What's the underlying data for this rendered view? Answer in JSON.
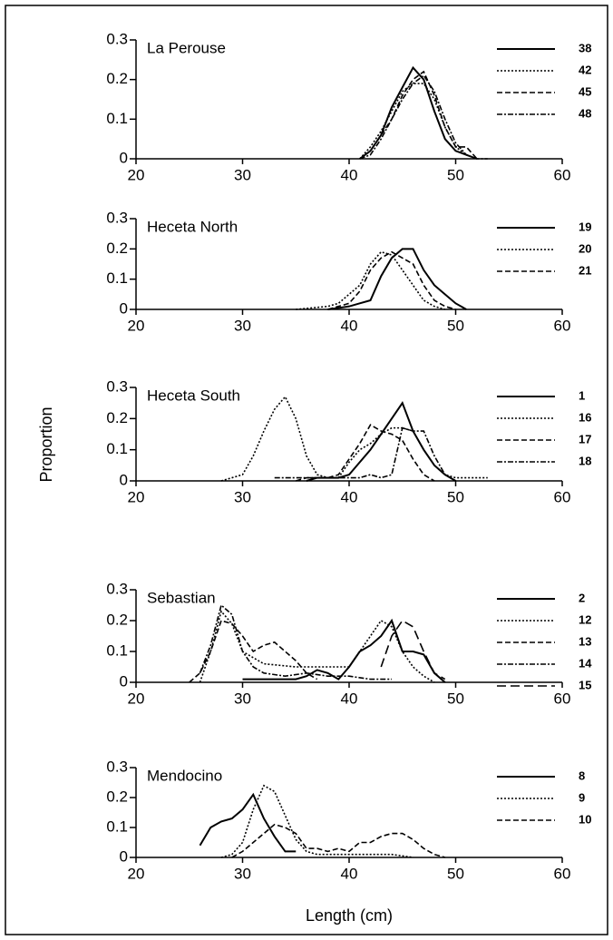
{
  "y_label": "Proportion",
  "x_label": "Length (cm)",
  "chart_data": [
    {
      "type": "line",
      "title": "La Perouse",
      "xlim": [
        20,
        60
      ],
      "xticks": [
        20,
        30,
        40,
        50,
        60
      ],
      "ylim": [
        0,
        0.3
      ],
      "yticks": [
        0,
        0.1,
        0.2,
        0.3
      ],
      "series": [
        {
          "name": "38",
          "color": "#000000",
          "dash": "solid",
          "x": [
            41,
            42,
            43,
            44,
            45,
            46,
            47,
            48,
            49,
            50,
            51,
            52
          ],
          "values": [
            0,
            0.02,
            0.06,
            0.13,
            0.18,
            0.23,
            0.2,
            0.12,
            0.05,
            0.02,
            0.01,
            0
          ]
        },
        {
          "name": "42",
          "color": "#000000",
          "dash": "dotted",
          "x": [
            41,
            42,
            43,
            44,
            45,
            46,
            47,
            48,
            49,
            50,
            51,
            52
          ],
          "values": [
            0,
            0.03,
            0.07,
            0.12,
            0.17,
            0.19,
            0.19,
            0.15,
            0.08,
            0.03,
            0.01,
            0
          ]
        },
        {
          "name": "45",
          "color": "#000000",
          "dash": "dashed",
          "x": [
            41,
            42,
            43,
            44,
            45,
            46,
            47,
            48,
            49,
            50,
            51,
            52
          ],
          "values": [
            0,
            0.02,
            0.06,
            0.1,
            0.16,
            0.2,
            0.22,
            0.16,
            0.08,
            0.03,
            0.03,
            0
          ]
        },
        {
          "name": "48",
          "color": "#000000",
          "dash": "dashdot",
          "x": [
            41,
            42,
            43,
            44,
            45,
            46,
            47,
            48,
            49,
            50,
            51,
            52,
            53
          ],
          "values": [
            0,
            0.01,
            0.05,
            0.1,
            0.15,
            0.19,
            0.21,
            0.17,
            0.1,
            0.04,
            0.01,
            0,
            0
          ]
        }
      ]
    },
    {
      "type": "line",
      "title": "Heceta North",
      "xlim": [
        20,
        60
      ],
      "xticks": [
        20,
        30,
        40,
        50,
        60
      ],
      "ylim": [
        0,
        0.3
      ],
      "yticks": [
        0,
        0.1,
        0.2,
        0.3
      ],
      "series": [
        {
          "name": "19",
          "color": "#000000",
          "dash": "solid",
          "x": [
            38,
            40,
            41,
            42,
            43,
            44,
            45,
            46,
            47,
            48,
            49,
            50,
            51
          ],
          "values": [
            0,
            0.01,
            0.02,
            0.03,
            0.11,
            0.17,
            0.2,
            0.2,
            0.13,
            0.08,
            0.05,
            0.02,
            0
          ]
        },
        {
          "name": "20",
          "color": "#000000",
          "dash": "dotted",
          "x": [
            35,
            38,
            39,
            40,
            41,
            42,
            43,
            44,
            45,
            46,
            47,
            48,
            49
          ],
          "values": [
            0,
            0.01,
            0.02,
            0.05,
            0.08,
            0.15,
            0.19,
            0.18,
            0.13,
            0.08,
            0.03,
            0.01,
            0
          ]
        },
        {
          "name": "21",
          "color": "#000000",
          "dash": "dashed",
          "x": [
            38,
            40,
            41,
            42,
            43,
            44,
            45,
            46,
            47,
            48,
            49,
            50
          ],
          "values": [
            0,
            0.02,
            0.06,
            0.13,
            0.17,
            0.19,
            0.17,
            0.15,
            0.08,
            0.03,
            0.01,
            0
          ]
        }
      ]
    },
    {
      "type": "line",
      "title": "Heceta South",
      "xlim": [
        20,
        60
      ],
      "xticks": [
        20,
        30,
        40,
        50,
        60
      ],
      "ylim": [
        0,
        0.3
      ],
      "yticks": [
        0,
        0.1,
        0.2,
        0.3
      ],
      "series": [
        {
          "name": "1",
          "color": "#000000",
          "dash": "solid",
          "x": [
            36,
            37,
            39,
            40,
            41,
            42,
            43,
            44,
            45,
            46,
            47,
            48,
            49,
            50
          ],
          "values": [
            0,
            0.01,
            0.01,
            0.02,
            0.06,
            0.1,
            0.15,
            0.2,
            0.25,
            0.16,
            0.1,
            0.05,
            0.02,
            0
          ]
        },
        {
          "name": "16",
          "color": "#000000",
          "dash": "dotted",
          "x": [
            28,
            29,
            30,
            31,
            32,
            33,
            34,
            35,
            36,
            37,
            38,
            39,
            40,
            41,
            42,
            43,
            44,
            45,
            46,
            47,
            48,
            49,
            50,
            51,
            52,
            53
          ],
          "values": [
            0,
            0.01,
            0.02,
            0.08,
            0.16,
            0.23,
            0.27,
            0.2,
            0.08,
            0.02,
            0.01,
            0.01,
            0.06,
            0.1,
            0.12,
            0.15,
            0.17,
            0.17,
            0.16,
            0.1,
            0.05,
            0.02,
            0.01,
            0.01,
            0.01,
            0.01
          ]
        },
        {
          "name": "17",
          "color": "#000000",
          "dash": "dashed",
          "x": [
            35,
            36,
            38,
            39,
            40,
            41,
            42,
            43,
            44,
            45,
            46,
            47,
            48
          ],
          "values": [
            0,
            0.01,
            0.01,
            0.02,
            0.07,
            0.12,
            0.18,
            0.16,
            0.15,
            0.13,
            0.07,
            0.02,
            0
          ]
        },
        {
          "name": "18",
          "color": "#000000",
          "dash": "dashdot",
          "x": [
            33,
            35,
            37,
            39,
            40,
            41,
            42,
            43,
            44,
            45,
            46,
            47,
            48,
            49,
            50
          ],
          "values": [
            0.01,
            0.01,
            0.01,
            0.01,
            0.01,
            0.01,
            0.02,
            0.01,
            0.02,
            0.17,
            0.16,
            0.16,
            0.08,
            0.02,
            0
          ]
        }
      ]
    },
    {
      "type": "line",
      "title": "Sebastian",
      "xlim": [
        20,
        60
      ],
      "xticks": [
        20,
        30,
        40,
        50,
        60
      ],
      "ylim": [
        0,
        0.3
      ],
      "yticks": [
        0,
        0.1,
        0.2,
        0.3
      ],
      "series": [
        {
          "name": "2",
          "color": "#000000",
          "dash": "solid",
          "x": [
            30,
            35,
            36,
            37,
            38,
            39,
            40,
            41,
            42,
            43,
            44,
            45,
            46,
            47,
            48,
            49
          ],
          "values": [
            0.01,
            0.01,
            0.02,
            0.04,
            0.03,
            0.01,
            0.05,
            0.1,
            0.12,
            0.15,
            0.2,
            0.1,
            0.1,
            0.09,
            0.03,
            0
          ]
        },
        {
          "name": "12",
          "color": "#000000",
          "dash": "dotted",
          "x": [
            26,
            27,
            28,
            29,
            30,
            31,
            32,
            35,
            40,
            41,
            42,
            43,
            44,
            45,
            46,
            47,
            48
          ],
          "values": [
            0,
            0.1,
            0.23,
            0.19,
            0.1,
            0.08,
            0.06,
            0.05,
            0.05,
            0.1,
            0.15,
            0.2,
            0.18,
            0.1,
            0.05,
            0.02,
            0
          ]
        },
        {
          "name": "13",
          "color": "#000000",
          "dash": "dashed",
          "x": [
            25,
            26,
            27,
            28,
            29,
            30,
            31,
            32,
            33,
            34,
            35,
            36,
            37
          ],
          "values": [
            0,
            0.03,
            0.1,
            0.2,
            0.19,
            0.15,
            0.1,
            0.12,
            0.13,
            0.1,
            0.07,
            0.03,
            0.01
          ]
        },
        {
          "name": "14",
          "color": "#000000",
          "dash": "dashdot",
          "x": [
            26,
            27,
            28,
            29,
            30,
            31,
            32,
            34,
            36,
            38,
            40,
            42,
            44
          ],
          "values": [
            0.03,
            0.12,
            0.25,
            0.22,
            0.1,
            0.05,
            0.03,
            0.02,
            0.03,
            0.02,
            0.02,
            0.01,
            0.01
          ]
        },
        {
          "name": "15",
          "color": "#000000",
          "dash": "longdash",
          "x": [
            43,
            44,
            45,
            46,
            47,
            48,
            49
          ],
          "values": [
            0.05,
            0.15,
            0.2,
            0.18,
            0.1,
            0.03,
            0.01
          ]
        }
      ]
    },
    {
      "type": "line",
      "title": "Mendocino",
      "xlim": [
        20,
        60
      ],
      "xticks": [
        20,
        30,
        40,
        50,
        60
      ],
      "ylim": [
        0,
        0.3
      ],
      "yticks": [
        0,
        0.1,
        0.2,
        0.3
      ],
      "series": [
        {
          "name": "8",
          "color": "#000000",
          "dash": "solid",
          "x": [
            26,
            27,
            28,
            29,
            30,
            31,
            32,
            33,
            34,
            35
          ],
          "values": [
            0.04,
            0.1,
            0.12,
            0.13,
            0.16,
            0.21,
            0.13,
            0.07,
            0.02,
            0.02
          ]
        },
        {
          "name": "9",
          "color": "#000000",
          "dash": "dotted",
          "x": [
            28,
            29,
            30,
            31,
            32,
            33,
            34,
            35,
            36,
            37,
            38,
            40,
            42,
            44,
            46
          ],
          "values": [
            0,
            0.01,
            0.05,
            0.16,
            0.24,
            0.22,
            0.14,
            0.06,
            0.02,
            0.01,
            0.01,
            0.01,
            0.01,
            0.01,
            0
          ]
        },
        {
          "name": "10",
          "color": "#000000",
          "dash": "dashed",
          "x": [
            29,
            30,
            31,
            32,
            33,
            34,
            35,
            36,
            37,
            38,
            39,
            40,
            41,
            42,
            43,
            44,
            45,
            46,
            47,
            48,
            49
          ],
          "values": [
            0,
            0.02,
            0.05,
            0.08,
            0.11,
            0.1,
            0.08,
            0.03,
            0.03,
            0.02,
            0.03,
            0.02,
            0.05,
            0.05,
            0.07,
            0.08,
            0.08,
            0.06,
            0.03,
            0.01,
            0
          ]
        }
      ]
    }
  ]
}
